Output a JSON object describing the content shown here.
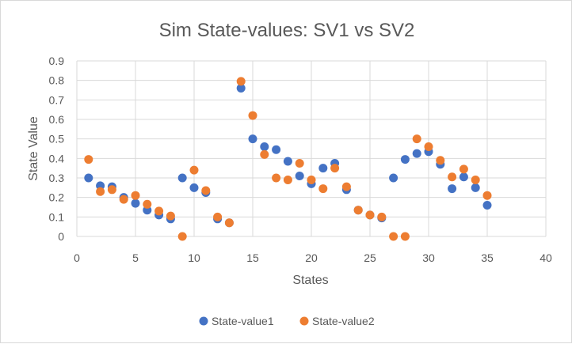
{
  "chart_data": {
    "type": "scatter",
    "title": "Sim State-values: SV1 vs SV2",
    "xlabel": "States",
    "ylabel": "State Value",
    "xlim": [
      0,
      40
    ],
    "ylim": [
      0,
      0.9
    ],
    "xticks": [
      0,
      5,
      10,
      15,
      20,
      25,
      30,
      35,
      40
    ],
    "yticks": [
      0,
      0.1,
      0.2,
      0.3,
      0.4,
      0.5,
      0.6,
      0.7,
      0.8,
      0.9
    ],
    "xtick_labels": [
      "0",
      "5",
      "10",
      "15",
      "20",
      "25",
      "30",
      "35",
      "40"
    ],
    "ytick_labels": [
      "0",
      "0.1",
      "0.2",
      "0.3",
      "0.4",
      "0.5",
      "0.6",
      "0.7",
      "0.8",
      "0.9"
    ],
    "grid": true,
    "legend_position": "bottom",
    "series": [
      {
        "name": "State-value1",
        "color": "#4472c4",
        "x": [
          1,
          2,
          3,
          4,
          5,
          6,
          7,
          8,
          9,
          10,
          11,
          12,
          13,
          14,
          15,
          16,
          17,
          18,
          19,
          20,
          21,
          22,
          23,
          24,
          25,
          26,
          27,
          28,
          29,
          30,
          31,
          32,
          33,
          34,
          35
        ],
        "y": [
          0.3,
          0.26,
          0.255,
          0.2,
          0.17,
          0.135,
          0.11,
          0.09,
          0.3,
          0.25,
          0.225,
          0.09,
          0.07,
          0.76,
          0.5,
          0.46,
          0.445,
          0.385,
          0.31,
          0.27,
          0.35,
          0.375,
          0.24,
          0.135,
          0.11,
          0.095,
          0.3,
          0.395,
          0.425,
          0.435,
          0.37,
          0.245,
          0.305,
          0.25,
          0.16
        ]
      },
      {
        "name": "State-value2",
        "color": "#ed7d31",
        "x": [
          1,
          2,
          3,
          4,
          5,
          6,
          7,
          8,
          9,
          10,
          11,
          12,
          13,
          14,
          15,
          16,
          17,
          18,
          19,
          20,
          21,
          22,
          23,
          24,
          25,
          26,
          27,
          28,
          29,
          30,
          31,
          32,
          33,
          34,
          35
        ],
        "y": [
          0.395,
          0.23,
          0.24,
          0.19,
          0.21,
          0.165,
          0.13,
          0.105,
          0.0,
          0.34,
          0.235,
          0.1,
          0.07,
          0.795,
          0.62,
          0.42,
          0.3,
          0.29,
          0.375,
          0.29,
          0.245,
          0.35,
          0.255,
          0.135,
          0.11,
          0.1,
          0.0,
          0.0,
          0.5,
          0.46,
          0.39,
          0.305,
          0.345,
          0.29,
          0.21
        ]
      }
    ]
  }
}
